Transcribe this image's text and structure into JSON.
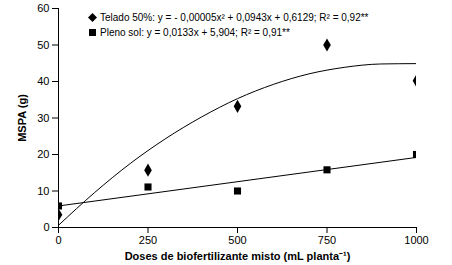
{
  "chart_data": {
    "type": "scatter",
    "x_label": "Doses de biofertilizante misto (mL planta⁻¹)",
    "y_label": "MSPA (g)",
    "x": [
      0,
      250,
      500,
      750,
      1000
    ],
    "series": [
      {
        "name": "Telado 50%: y = - 0,00005x² + 0,0943x + 0,6129; R² = 0,92**",
        "type": "scatter",
        "marker": "diamond",
        "color": "#000000",
        "values": [
          3.5,
          15.7,
          33.2,
          50,
          40.2
        ]
      },
      {
        "name": "Pleno sol: y = 0,0133x + 5,904; R² = 0,91**",
        "type": "scatter",
        "marker": "square",
        "color": "#000000",
        "values": [
          5.9,
          11.1,
          10,
          15.8,
          20
        ]
      },
      {
        "type": "line",
        "color": "#000000",
        "x": [
          0,
          100,
          200,
          300,
          400,
          500,
          600,
          700,
          800,
          900,
          1000
        ],
        "values": [
          0.6,
          9.5,
          17.5,
          24.4,
          30.3,
          35.3,
          39.2,
          42.1,
          43.9,
          44.8,
          44.9
        ]
      },
      {
        "type": "line",
        "color": "#000000",
        "x": [
          0,
          1000
        ],
        "values": [
          5.9,
          19.2
        ]
      }
    ],
    "xlim": [
      0,
      1000
    ],
    "xticks": [
      0,
      250,
      500,
      750,
      1000
    ],
    "ylim": [
      0,
      60
    ],
    "yticks": [
      0,
      10,
      20,
      30,
      40,
      50,
      60
    ],
    "legend": "top-left",
    "grid": false
  }
}
